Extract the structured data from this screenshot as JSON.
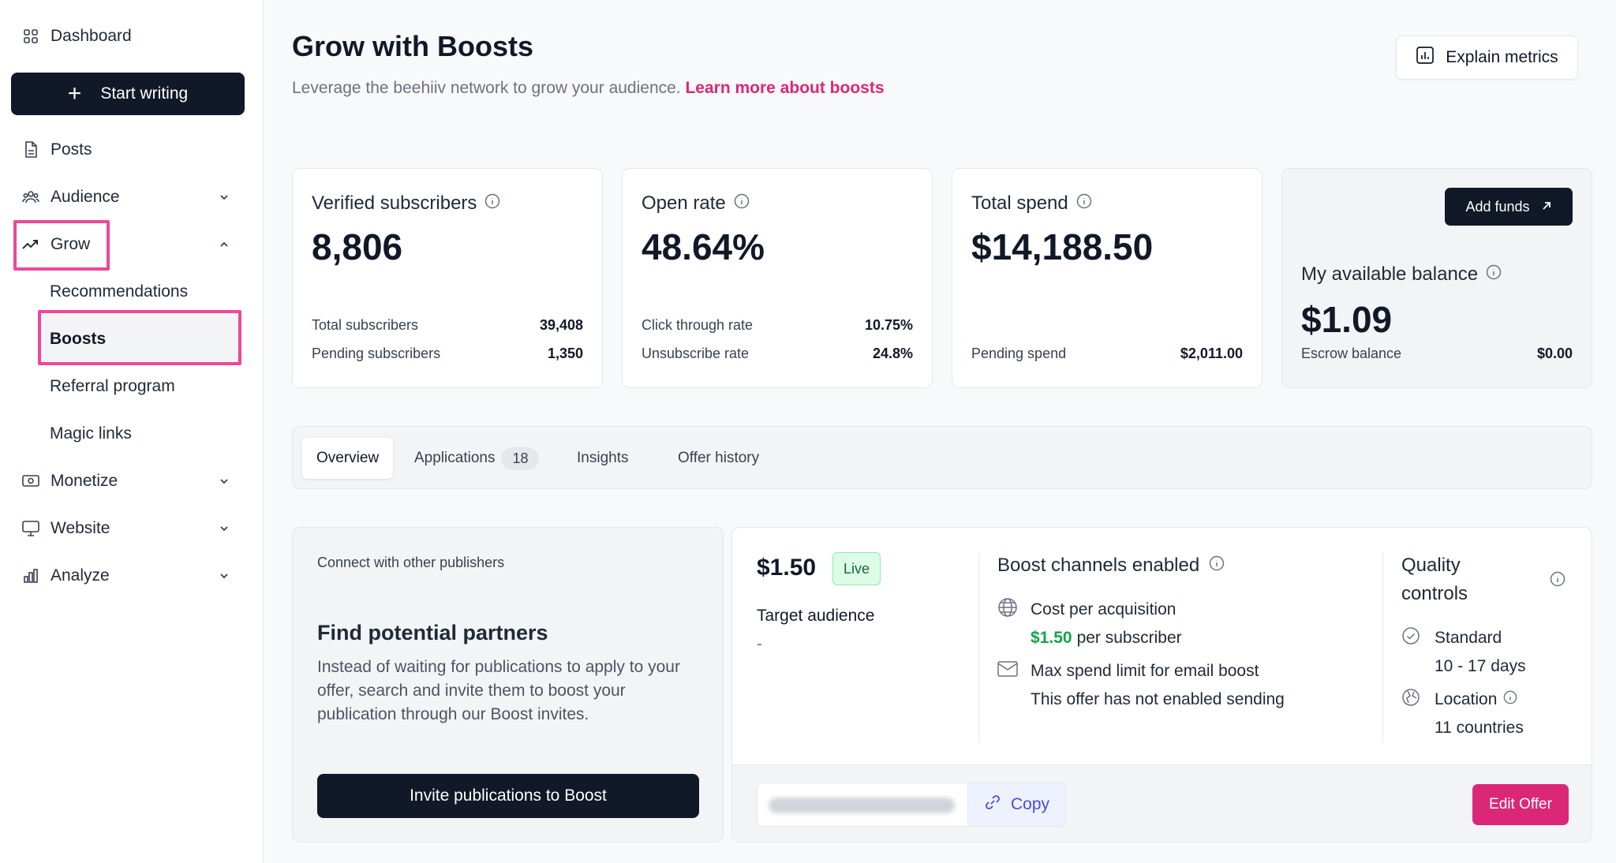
{
  "sidebar": {
    "dashboard": "Dashboard",
    "start_writing": "Start writing",
    "posts": "Posts",
    "audience": "Audience",
    "grow": "Grow",
    "grow_items": [
      "Recommendations",
      "Boosts",
      "Referral program",
      "Magic links"
    ],
    "monetize": "Monetize",
    "website": "Website",
    "analyze": "Analyze"
  },
  "header": {
    "title": "Grow with Boosts",
    "subtitle": "Leverage the beehiiv network to grow your audience.",
    "learn_link": "Learn more about boosts",
    "explain_button": "Explain metrics"
  },
  "stats": {
    "verified": {
      "label": "Verified subscribers",
      "value": "8,806",
      "rows": [
        {
          "label": "Total subscribers",
          "value": "39,408"
        },
        {
          "label": "Pending subscribers",
          "value": "1,350"
        }
      ]
    },
    "open_rate": {
      "label": "Open rate",
      "value": "48.64%",
      "rows": [
        {
          "label": "Click through rate",
          "value": "10.75%"
        },
        {
          "label": "Unsubscribe rate",
          "value": "24.8%"
        }
      ]
    },
    "total_spend": {
      "label": "Total spend",
      "value": "$14,188.50",
      "rows": [
        {
          "label": "Pending spend",
          "value": "$2,011.00"
        }
      ]
    },
    "balance": {
      "add_funds": "Add funds",
      "label": "My available balance",
      "value": "$1.09",
      "rows": [
        {
          "label": "Escrow balance",
          "value": "$0.00"
        }
      ]
    }
  },
  "tabs": [
    {
      "label": "Overview"
    },
    {
      "label": "Applications",
      "badge": "18"
    },
    {
      "label": "Insights"
    },
    {
      "label": "Offer history"
    }
  ],
  "partners": {
    "small": "Connect with other publishers",
    "heading": "Find potential partners",
    "body": "Instead of waiting for publications to apply to your offer, search and invite them to boost your publication through our Boost invites.",
    "button": "Invite publications to Boost"
  },
  "offer": {
    "price": "$1.50",
    "status": "Live",
    "target_label": "Target audience",
    "target_value": "-",
    "channels_title": "Boost channels enabled",
    "cpa_label": "Cost per acquisition",
    "cpa_price": "$1.50",
    "cpa_suffix": "per subscriber",
    "email_label": "Max spend limit for email boost",
    "email_value": "This offer has not enabled sending",
    "quality_title_1": "Quality",
    "quality_title_2": "controls",
    "standard_label": "Standard",
    "standard_value": "10 - 17 days",
    "location_label": "Location",
    "location_value": "11 countries",
    "copy_button": "Copy",
    "edit_button": "Edit Offer"
  },
  "colors": {
    "accent": "#db2777",
    "highlight": "#ec4899",
    "dark": "#111827",
    "green": "#16a34a"
  }
}
